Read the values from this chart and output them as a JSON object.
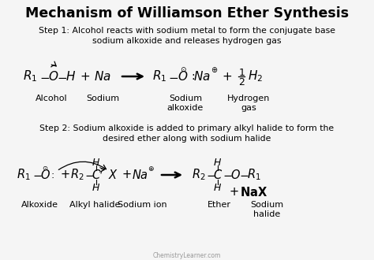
{
  "title": "Mechanism of Williamson Ether Synthesis",
  "background_color": "#f5f5f5",
  "text_color": "#000000",
  "step1_line1": "Step 1: Alcohol reacts with sodium metal to form the conjugate base",
  "step1_line2": "sodium alkoxide and releases hydrogen gas",
  "step2_line1": "Step 2: Sodium alkoxide is added to primary alkyl halide to form the",
  "step2_line2": "desired ether along with sodium halide",
  "watermark": "ChemistryLearner.com",
  "fig_width": 4.74,
  "fig_height": 3.3,
  "dpi": 100
}
